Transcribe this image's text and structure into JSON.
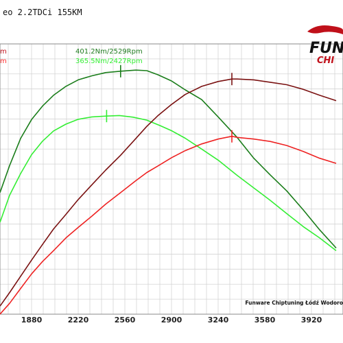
{
  "title": "eo 2.2TDCi 155KM",
  "logo": {
    "main": "FUN",
    "sub": "CHI"
  },
  "footer": "Funware Chiptuning Łódź Wodoro",
  "legend_fragments": [
    {
      "text": "m",
      "color": "#c0101a"
    },
    {
      "text": "m",
      "color": "#ff2a2a"
    }
  ],
  "annotations": [
    {
      "text": "401.2Nm/2529Rpm",
      "color": "#1f7a1f"
    },
    {
      "text": "365.5Nm/2427Rpm",
      "color": "#33ee33"
    }
  ],
  "colors": {
    "tuned_torque": "#1a7d1a",
    "stock_torque": "#33ee33",
    "tuned_power": "#7a1111",
    "stock_power": "#ee2222",
    "grid": "#d4d4d4"
  },
  "chart_data": {
    "type": "line",
    "title": "eo 2.2TDCi 155KM",
    "xlabel": "",
    "ylabel": "",
    "xlim": [
      1650,
      4150
    ],
    "ylim": [
      0,
      100
    ],
    "x_ticks": [
      1880,
      2220,
      2560,
      2900,
      3240,
      3580,
      3920
    ],
    "grid": true,
    "series": [
      {
        "name": "",
        "color": "#1a7d1a",
        "points": [
          [
            1650,
            45
          ],
          [
            1720,
            55
          ],
          [
            1800,
            65
          ],
          [
            1880,
            72
          ],
          [
            1960,
            77
          ],
          [
            2040,
            81
          ],
          [
            2130,
            84.3
          ],
          [
            2220,
            86.7
          ],
          [
            2320,
            88.2
          ],
          [
            2420,
            89.4
          ],
          [
            2529,
            89.9
          ],
          [
            2640,
            90.3
          ],
          [
            2720,
            90.1
          ],
          [
            2800,
            88.6
          ],
          [
            2900,
            86.3
          ],
          [
            3000,
            83
          ],
          [
            3120,
            79.4
          ],
          [
            3240,
            73
          ],
          [
            3380,
            65.3
          ],
          [
            3500,
            57.7
          ],
          [
            3620,
            51.5
          ],
          [
            3740,
            45.6
          ],
          [
            3860,
            38.6
          ],
          [
            3980,
            31.2
          ],
          [
            4100,
            24.5
          ]
        ],
        "marker": {
          "x": 2529,
          "y": 89.9
        }
      },
      {
        "name": "",
        "color": "#33ee33",
        "points": [
          [
            1650,
            34
          ],
          [
            1720,
            44
          ],
          [
            1800,
            52
          ],
          [
            1880,
            59
          ],
          [
            1960,
            64
          ],
          [
            2040,
            67.8
          ],
          [
            2130,
            70.3
          ],
          [
            2220,
            72.1
          ],
          [
            2320,
            73
          ],
          [
            2427,
            73.3
          ],
          [
            2520,
            73.5
          ],
          [
            2620,
            72.9
          ],
          [
            2720,
            71.8
          ],
          [
            2820,
            69.7
          ],
          [
            2900,
            67.9
          ],
          [
            3000,
            65.1
          ],
          [
            3120,
            61.1
          ],
          [
            3240,
            57
          ],
          [
            3380,
            51.3
          ],
          [
            3500,
            46.7
          ],
          [
            3620,
            42.1
          ],
          [
            3740,
            37.2
          ],
          [
            3860,
            32.4
          ],
          [
            3980,
            28.2
          ],
          [
            4100,
            23.5
          ]
        ],
        "marker": {
          "x": 2427,
          "y": 73.3
        }
      },
      {
        "name": "",
        "color": "#7a1111",
        "points": [
          [
            1650,
            3
          ],
          [
            1720,
            8
          ],
          [
            1800,
            14
          ],
          [
            1880,
            20
          ],
          [
            1960,
            25.8
          ],
          [
            2040,
            31.5
          ],
          [
            2130,
            36.9
          ],
          [
            2220,
            42.4
          ],
          [
            2320,
            47.9
          ],
          [
            2420,
            53.3
          ],
          [
            2529,
            58.8
          ],
          [
            2640,
            65
          ],
          [
            2720,
            69.5
          ],
          [
            2800,
            73.4
          ],
          [
            2900,
            77.6
          ],
          [
            3000,
            81.3
          ],
          [
            3120,
            84.3
          ],
          [
            3240,
            86.1
          ],
          [
            3340,
            87
          ],
          [
            3380,
            87
          ],
          [
            3500,
            86.7
          ],
          [
            3620,
            85.8
          ],
          [
            3740,
            84.9
          ],
          [
            3860,
            83.2
          ],
          [
            3980,
            81
          ],
          [
            4100,
            79
          ]
        ],
        "marker": {
          "x": 3340,
          "y": 87
        }
      },
      {
        "name": "",
        "color": "#ee2222",
        "points": [
          [
            1650,
            0
          ],
          [
            1720,
            4
          ],
          [
            1800,
            9.5
          ],
          [
            1880,
            14.9
          ],
          [
            1960,
            19.5
          ],
          [
            2040,
            23.5
          ],
          [
            2130,
            28.2
          ],
          [
            2220,
            32.1
          ],
          [
            2320,
            36.3
          ],
          [
            2420,
            40.7
          ],
          [
            2529,
            45
          ],
          [
            2640,
            49.4
          ],
          [
            2720,
            52.4
          ],
          [
            2800,
            54.8
          ],
          [
            2900,
            57.9
          ],
          [
            3000,
            60.5
          ],
          [
            3120,
            63
          ],
          [
            3240,
            64.8
          ],
          [
            3340,
            65.8
          ],
          [
            3380,
            65.4
          ],
          [
            3500,
            64.8
          ],
          [
            3620,
            63.9
          ],
          [
            3740,
            62.4
          ],
          [
            3860,
            60.2
          ],
          [
            3980,
            57.7
          ],
          [
            4100,
            55.8
          ]
        ],
        "marker": {
          "x": 3340,
          "y": 65.8
        }
      }
    ]
  }
}
